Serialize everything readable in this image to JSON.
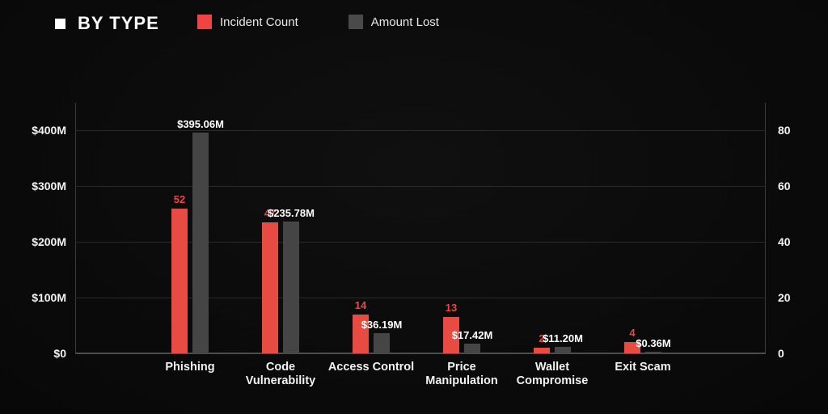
{
  "header": {
    "title": "BY TYPE",
    "legend": [
      {
        "label": "Incident Count",
        "color": "#ef4444"
      },
      {
        "label": "Amount Lost",
        "color": "#4a4a4a"
      }
    ]
  },
  "colors": {
    "background": "#0b0b0b",
    "incident_bar": "#e84b41",
    "amount_bar": "#454545",
    "gridline": "#2a2a2a",
    "axis_line": "#3c3c3c",
    "tick_text": "#f2f2f2",
    "count_label_text": "#ef4444",
    "amount_label_text": "#ffffff"
  },
  "chart_data": {
    "type": "bar",
    "title": "BY TYPE",
    "categories": [
      "Phishing",
      "Code Vulnerability",
      "Access Control",
      "Price Manipulation",
      "Wallet Compromise",
      "Exit Scam"
    ],
    "series": [
      {
        "name": "Incident Count",
        "axis": "right",
        "values": [
          52,
          47,
          14,
          13,
          2,
          4
        ],
        "labels": [
          "52",
          "47",
          "14",
          "13",
          "2",
          "4"
        ]
      },
      {
        "name": "Amount Lost",
        "axis": "left",
        "values": [
          395.06,
          235.78,
          36.19,
          17.42,
          11.2,
          0.36
        ],
        "labels": [
          "$395.06M",
          "$235.78M",
          "$36.19M",
          "$17.42M",
          "$11.20M",
          "$0.36M"
        ]
      }
    ],
    "left_axis": {
      "ticks": [
        "$400M",
        "$300M",
        "$200M",
        "$100M",
        "$0"
      ],
      "tick_values": [
        400,
        300,
        200,
        100,
        0
      ],
      "min": 0,
      "max": 400
    },
    "right_axis": {
      "ticks": [
        "80",
        "60",
        "40",
        "20",
        "0"
      ],
      "tick_values": [
        80,
        60,
        40,
        20,
        0
      ],
      "min": 0,
      "max": 80
    },
    "grid": true,
    "legend_position": "top"
  }
}
